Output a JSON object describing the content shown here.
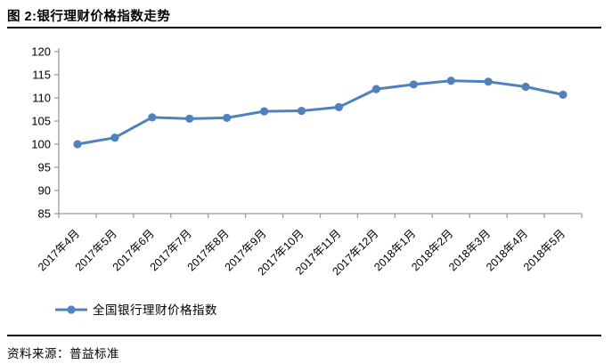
{
  "header": {
    "title": "图 2:银行理财价格指数走势"
  },
  "footer": {
    "source": "资料来源：普益标准"
  },
  "chart_data": {
    "type": "line",
    "title": "图 2:银行理财价格指数走势",
    "xlabel": "",
    "ylabel": "",
    "categories": [
      "2017年4月",
      "2017年5月",
      "2017年6月",
      "2017年7月",
      "2017年8月",
      "2017年9月",
      "2017年10月",
      "2017年11月",
      "2017年12月",
      "2018年1月",
      "2018年2月",
      "2018年3月",
      "2018年4月",
      "2018年5月"
    ],
    "series": [
      {
        "name": "全国银行理财价格指数",
        "values": [
          100.0,
          101.4,
          105.8,
          105.5,
          105.7,
          107.1,
          107.2,
          108.0,
          111.9,
          112.9,
          113.7,
          113.5,
          112.4,
          110.7
        ]
      }
    ],
    "ylim": [
      85,
      120
    ],
    "ytick_step": 5,
    "grid": false,
    "legend_position": "bottom-left",
    "colors": {
      "series_line": "#4F81BD",
      "axis_line": "#9B9B9B",
      "tick_label": "#000000",
      "rule": "#000000"
    }
  }
}
